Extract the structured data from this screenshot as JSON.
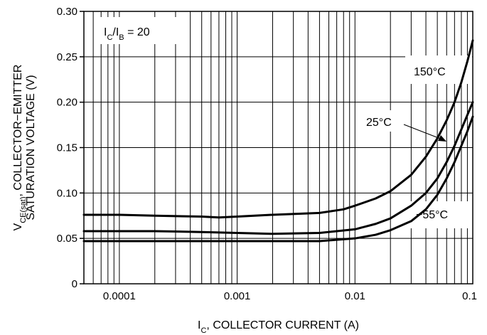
{
  "chart_data": {
    "type": "line",
    "x_scale": "log",
    "xlim": [
      5e-05,
      0.1
    ],
    "ylim": [
      0,
      0.3
    ],
    "grid": true,
    "xticks": [
      "0.0001",
      "0.001",
      "0.01",
      "0.1"
    ],
    "yticks": [
      "0",
      "0.05",
      "0.10",
      "0.15",
      "0.20",
      "0.25",
      "0.30"
    ],
    "xlabel": {
      "parts": [
        {
          "t": "I",
          "sub": false
        },
        {
          "t": "C",
          "sub": true
        },
        {
          "t": ", COLLECTOR CURRENT (A)",
          "sub": false
        }
      ]
    },
    "ylabel": {
      "line1": [
        {
          "t": "V",
          "sub": false
        },
        {
          "t": "CE(sat)",
          "sub": true
        },
        {
          "t": ", COLLECTOR−EMITTER",
          "sub": false
        }
      ],
      "line2": "SATURATION VOLTAGE (V)"
    },
    "condition": {
      "parts": [
        {
          "t": "I",
          "sub": false
        },
        {
          "t": "C",
          "sub": true
        },
        {
          "t": "/I",
          "sub": false
        },
        {
          "t": "B",
          "sub": true
        },
        {
          "t": " = 20",
          "sub": false
        }
      ]
    },
    "series": [
      {
        "name": "150°C",
        "x": [
          5e-05,
          0.0001,
          0.0002,
          0.0005,
          0.0007,
          0.001,
          0.002,
          0.005,
          0.008,
          0.01,
          0.015,
          0.02,
          0.03,
          0.04,
          0.05,
          0.06,
          0.07,
          0.08,
          0.09,
          0.1
        ],
        "y": [
          0.076,
          0.076,
          0.075,
          0.074,
          0.073,
          0.074,
          0.076,
          0.078,
          0.082,
          0.086,
          0.094,
          0.102,
          0.12,
          0.14,
          0.16,
          0.18,
          0.2,
          0.222,
          0.245,
          0.268
        ]
      },
      {
        "name": "25°C",
        "x": [
          5e-05,
          0.0001,
          0.0002,
          0.0005,
          0.001,
          0.002,
          0.005,
          0.01,
          0.015,
          0.02,
          0.03,
          0.04,
          0.05,
          0.06,
          0.07,
          0.08,
          0.09,
          0.1
        ],
        "y": [
          0.058,
          0.058,
          0.058,
          0.057,
          0.056,
          0.055,
          0.056,
          0.06,
          0.066,
          0.072,
          0.086,
          0.1,
          0.116,
          0.134,
          0.152,
          0.17,
          0.186,
          0.2
        ]
      },
      {
        "name": "−55°C",
        "x": [
          5e-05,
          0.0001,
          0.001,
          0.005,
          0.01,
          0.015,
          0.02,
          0.03,
          0.04,
          0.05,
          0.06,
          0.07,
          0.08,
          0.09,
          0.1
        ],
        "y": [
          0.047,
          0.047,
          0.047,
          0.047,
          0.05,
          0.054,
          0.059,
          0.069,
          0.082,
          0.098,
          0.116,
          0.134,
          0.152,
          0.168,
          0.184
        ]
      }
    ],
    "curve_labels": [
      "150°C",
      "25°C",
      "−55°C"
    ]
  }
}
